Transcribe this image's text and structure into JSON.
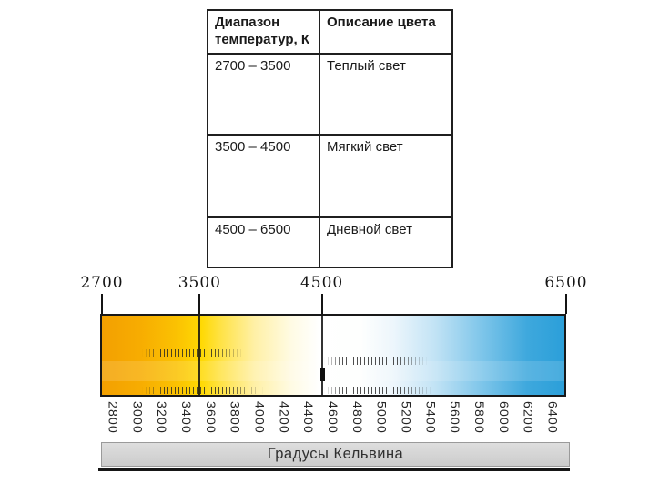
{
  "table": {
    "columns": [
      {
        "label": "Диапазон температур, К"
      },
      {
        "label": "Описание цвета"
      }
    ],
    "rows": [
      {
        "range": "2700 – 3500",
        "description": "Теплый  свет"
      },
      {
        "range": "3500 – 4500",
        "description": "Мягкий свет"
      },
      {
        "range": "4500 – 6500",
        "description": "Дневной свет"
      }
    ]
  },
  "kelvin_scale": {
    "unit_caption": "Градусы Кельвина",
    "min": 2700,
    "max": 6500,
    "top_ticks": [
      "2700",
      "3500",
      "4500",
      "6500"
    ],
    "boundary_lines": [
      "3500",
      "4500"
    ],
    "bottom_ticks": [
      "2800",
      "3000",
      "3200",
      "3400",
      "3600",
      "3800",
      "4000",
      "4200",
      "4400",
      "4600",
      "4800",
      "5000",
      "5200",
      "5400",
      "5600",
      "5800",
      "6000",
      "6200",
      "6400"
    ],
    "zone_colors": {
      "warm": "#F3A001",
      "yellow": "#FFD903",
      "neutral_white": "#FFFFFF",
      "cool_blue": "#2B9FD9"
    },
    "gradient_stops": [
      {
        "pos": 0,
        "color": "#F3A001"
      },
      {
        "pos": 8,
        "color": "#F7AC01"
      },
      {
        "pos": 16,
        "color": "#FBC102"
      },
      {
        "pos": 21.5,
        "color": "#FFD903"
      },
      {
        "pos": 26,
        "color": "#FFE34A"
      },
      {
        "pos": 33,
        "color": "#FFF0A6"
      },
      {
        "pos": 41,
        "color": "#FFFBE4"
      },
      {
        "pos": 47,
        "color": "#FFFFFF"
      },
      {
        "pos": 56,
        "color": "#FEFFFE"
      },
      {
        "pos": 63,
        "color": "#EDF6FC"
      },
      {
        "pos": 72,
        "color": "#C2E3F5"
      },
      {
        "pos": 82,
        "color": "#7FC6EA"
      },
      {
        "pos": 92,
        "color": "#3EA8DD"
      },
      {
        "pos": 100,
        "color": "#2B9FD9"
      }
    ]
  }
}
